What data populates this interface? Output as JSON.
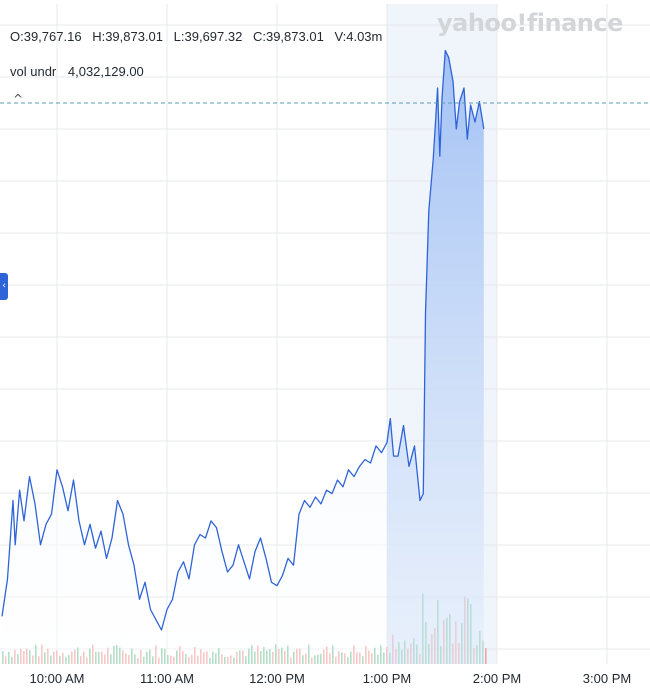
{
  "readout": {
    "open": "O:39,767.16",
    "high": "H:39,873.01",
    "low": "L:39,697.32",
    "close": "C:39,873.01",
    "volume": "V:4.03m"
  },
  "vol_indicator": {
    "label": "vol undr",
    "value": "4,032,129.00"
  },
  "collapse_caret": "^",
  "logo": "yahoo!finance",
  "side_tab_icon": "‹",
  "colors": {
    "line": "#2f64d8",
    "fill_light": "#e3edfb",
    "fill_highlight": "#9fbff4",
    "highlight_band": "#f0f4fb",
    "grid": "#e6e8eb",
    "reference_line": "#5a9bb5",
    "volume_up": "#7fc9a3",
    "volume_down": "#f0a3a3"
  },
  "chart_data": {
    "type": "line",
    "title": "",
    "x_unit": "time of day",
    "x_ticks": [
      "10:00 AM",
      "11:00 AM",
      "12:00 PM",
      "1:00 PM",
      "2:00 PM",
      "3:00 PM"
    ],
    "highlighted_range": [
      "1:00 PM",
      "2:00 PM"
    ],
    "reference_line": "dashed horizontal at previous close",
    "grid": true,
    "series": [
      {
        "values": [
          [
            9.5,
            39701
          ],
          [
            9.55,
            39712
          ],
          [
            9.6,
            39735
          ],
          [
            9.62,
            39722
          ],
          [
            9.66,
            39738
          ],
          [
            9.7,
            39729
          ],
          [
            9.75,
            39742
          ],
          [
            9.8,
            39734
          ],
          [
            9.85,
            39722
          ],
          [
            9.9,
            39728
          ],
          [
            9.95,
            39731
          ],
          [
            10.0,
            39744
          ],
          [
            10.05,
            39739
          ],
          [
            10.1,
            39732
          ],
          [
            10.15,
            39741
          ],
          [
            10.2,
            39729
          ],
          [
            10.25,
            39722
          ],
          [
            10.3,
            39728
          ],
          [
            10.35,
            39721
          ],
          [
            10.4,
            39726
          ],
          [
            10.45,
            39718
          ],
          [
            10.5,
            39724
          ],
          [
            10.55,
            39735
          ],
          [
            10.6,
            39731
          ],
          [
            10.65,
            39722
          ],
          [
            10.7,
            39716
          ],
          [
            10.75,
            39706
          ],
          [
            10.8,
            39711
          ],
          [
            10.85,
            39703
          ],
          [
            10.9,
            39700
          ],
          [
            10.95,
            39697
          ],
          [
            11.0,
            39703
          ],
          [
            11.05,
            39706
          ],
          [
            11.1,
            39714
          ],
          [
            11.15,
            39717
          ],
          [
            11.2,
            39712
          ],
          [
            11.25,
            39722
          ],
          [
            11.3,
            39725
          ],
          [
            11.35,
            39724
          ],
          [
            11.4,
            39729
          ],
          [
            11.45,
            39727
          ],
          [
            11.5,
            39720
          ],
          [
            11.55,
            39714
          ],
          [
            11.6,
            39716
          ],
          [
            11.65,
            39722
          ],
          [
            11.7,
            39717
          ],
          [
            11.75,
            39712
          ],
          [
            11.8,
            39720
          ],
          [
            11.85,
            39724
          ],
          [
            11.9,
            39718
          ],
          [
            11.95,
            39711
          ],
          [
            12.0,
            39710
          ],
          [
            12.05,
            39713
          ],
          [
            12.1,
            39718
          ],
          [
            12.15,
            39716
          ],
          [
            12.2,
            39731
          ],
          [
            12.25,
            39735
          ],
          [
            12.3,
            39733
          ],
          [
            12.35,
            39736
          ],
          [
            12.4,
            39734
          ],
          [
            12.45,
            39738
          ],
          [
            12.5,
            39737
          ],
          [
            12.55,
            39741
          ],
          [
            12.6,
            39739
          ],
          [
            12.65,
            39744
          ],
          [
            12.7,
            39742
          ],
          [
            12.75,
            39745
          ],
          [
            12.8,
            39747
          ],
          [
            12.85,
            39746
          ],
          [
            12.9,
            39751
          ],
          [
            12.95,
            39749
          ],
          [
            13.0,
            39752
          ],
          [
            13.03,
            39759
          ],
          [
            13.06,
            39748
          ],
          [
            13.1,
            39748
          ],
          [
            13.15,
            39757
          ],
          [
            13.2,
            39745
          ],
          [
            13.25,
            39751
          ],
          [
            13.3,
            39735
          ],
          [
            13.33,
            39737
          ],
          [
            13.35,
            39790
          ],
          [
            13.38,
            39820
          ],
          [
            13.42,
            39835
          ],
          [
            13.46,
            39856
          ],
          [
            13.48,
            39836
          ],
          [
            13.5,
            39853
          ],
          [
            13.53,
            39867
          ],
          [
            13.56,
            39865
          ],
          [
            13.6,
            39858
          ],
          [
            13.63,
            39844
          ],
          [
            13.66,
            39852
          ],
          [
            13.7,
            39856
          ],
          [
            13.73,
            39841
          ],
          [
            13.76,
            39851
          ],
          [
            13.8,
            39846
          ],
          [
            13.84,
            39852
          ],
          [
            13.88,
            39844
          ]
        ]
      }
    ],
    "volume_bars_present": true
  }
}
